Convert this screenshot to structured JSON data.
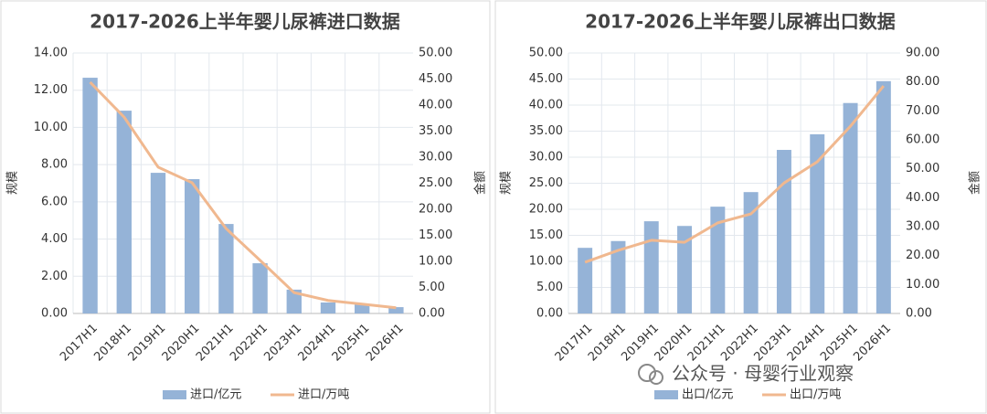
{
  "chart_data": [
    {
      "type": "combo",
      "title": "2017-2026上半年婴儿尿裤进口数据",
      "ylabel": "规模",
      "y2label": "金额",
      "categories": [
        "2017H1",
        "2018H1",
        "2019H1",
        "2020H1",
        "2021H1",
        "2022H1",
        "2023H1",
        "2024H1",
        "2025H1",
        "2026H1"
      ],
      "series": [
        {
          "name": "进口/亿元",
          "type": "bar",
          "color": "#95b3d7",
          "values": [
            12.67,
            10.9,
            7.56,
            7.22,
            4.81,
            2.7,
            1.28,
            0.59,
            0.49,
            0.34
          ]
        },
        {
          "name": "进口/万吨",
          "type": "line",
          "axis": "y2",
          "color": "#f0b88f",
          "values": [
            44.4,
            37.7,
            28.1,
            25.1,
            16.3,
            10.2,
            4.0,
            2.5,
            1.8,
            1.1
          ]
        }
      ],
      "ylim": [
        0,
        14
      ],
      "yticks": [
        {
          "value": 0,
          "label": "0.00"
        },
        {
          "value": 2,
          "label": "2.00"
        },
        {
          "value": 4,
          "label": "4.00"
        },
        {
          "value": 6,
          "label": "6.00"
        },
        {
          "value": 8,
          "label": "8.00"
        },
        {
          "value": 10,
          "label": "10.00"
        },
        {
          "value": 12,
          "label": "12.00"
        },
        {
          "value": 14,
          "label": "14.00"
        }
      ],
      "y2lim": [
        0,
        50
      ],
      "y2ticks": [
        {
          "value": 0,
          "label": "0.00"
        },
        {
          "value": 5,
          "label": "5.00"
        },
        {
          "value": 10,
          "label": "10.00"
        },
        {
          "value": 15,
          "label": "15.00"
        },
        {
          "value": 20,
          "label": "20.00"
        },
        {
          "value": 25,
          "label": "25.00"
        },
        {
          "value": 30,
          "label": "30.00"
        },
        {
          "value": 35,
          "label": "35.00"
        },
        {
          "value": 40,
          "label": "40.00"
        },
        {
          "value": 45,
          "label": "45.00"
        },
        {
          "value": 50,
          "label": "50.00"
        }
      ],
      "grid": true
    },
    {
      "type": "combo",
      "title": "2017-2026上半年婴儿尿裤出口数据",
      "ylabel": "规模",
      "y2label": "金额",
      "categories": [
        "2017H1",
        "2018H1",
        "2019H1",
        "2020H1",
        "2021H1",
        "2022H1",
        "2023H1",
        "2024H1",
        "2025H1",
        "2026H1"
      ],
      "series": [
        {
          "name": "出口/亿元",
          "type": "bar",
          "color": "#95b3d7",
          "values": [
            12.6,
            13.9,
            17.7,
            16.8,
            20.5,
            23.3,
            31.4,
            34.4,
            40.4,
            44.6
          ]
        },
        {
          "name": "出口/万吨",
          "type": "line",
          "axis": "y2",
          "color": "#f0b88f",
          "values": [
            17.7,
            21.8,
            25.3,
            24.6,
            31.3,
            34.4,
            45.1,
            52.4,
            64.7,
            78.6
          ]
        }
      ],
      "ylim": [
        0,
        50
      ],
      "yticks": [
        {
          "value": 0,
          "label": "0.00"
        },
        {
          "value": 5,
          "label": "5.00"
        },
        {
          "value": 10,
          "label": "10.00"
        },
        {
          "value": 15,
          "label": "15.00"
        },
        {
          "value": 20,
          "label": "20.00"
        },
        {
          "value": 25,
          "label": "25.00"
        },
        {
          "value": 30,
          "label": "30.00"
        },
        {
          "value": 35,
          "label": "35.00"
        },
        {
          "value": 40,
          "label": "40.00"
        },
        {
          "value": 45,
          "label": "45.00"
        },
        {
          "value": 50,
          "label": "50.00"
        }
      ],
      "y2lim": [
        0,
        90
      ],
      "y2ticks": [
        {
          "value": 0,
          "label": "0.00"
        },
        {
          "value": 10,
          "label": "10.00"
        },
        {
          "value": 20,
          "label": "20.00"
        },
        {
          "value": 30,
          "label": "30.00"
        },
        {
          "value": 40,
          "label": "40.00"
        },
        {
          "value": 50,
          "label": "50.00"
        },
        {
          "value": 60,
          "label": "60.00"
        },
        {
          "value": 70,
          "label": "70.00"
        },
        {
          "value": 80,
          "label": "80.00"
        },
        {
          "value": 90,
          "label": "90.00"
        }
      ],
      "grid": true
    }
  ],
  "watermark": "公众号 · 母婴行业观察"
}
